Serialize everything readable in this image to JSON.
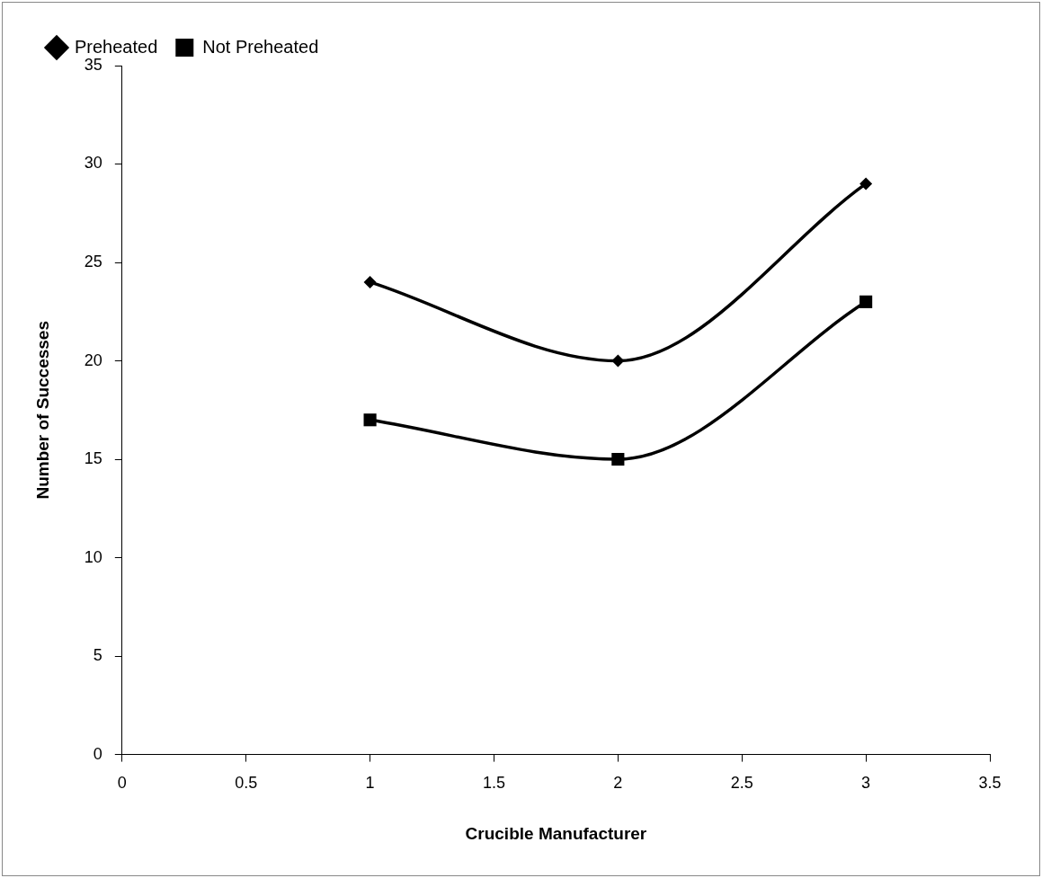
{
  "chart_data": {
    "type": "line",
    "xlabel": "Crucible Manufacturer",
    "ylabel": "Number of Successes",
    "x": [
      1,
      2,
      3
    ],
    "series": [
      {
        "name": "Preheated",
        "color": "#000000",
        "marker": "diamond",
        "values": [
          24,
          20,
          29
        ]
      },
      {
        "name": "Not Preheated",
        "color": "#000000",
        "marker": "square",
        "values": [
          17,
          15,
          23
        ]
      }
    ],
    "xlim": [
      0,
      3.5
    ],
    "xticks": [
      0,
      0.5,
      1,
      1.5,
      2,
      2.5,
      3,
      3.5
    ],
    "ylim": [
      0,
      35
    ],
    "yticks": [
      0,
      5,
      10,
      15,
      20,
      25,
      30,
      35
    ],
    "grid": false,
    "legend": "top left",
    "line_style": "solid"
  }
}
